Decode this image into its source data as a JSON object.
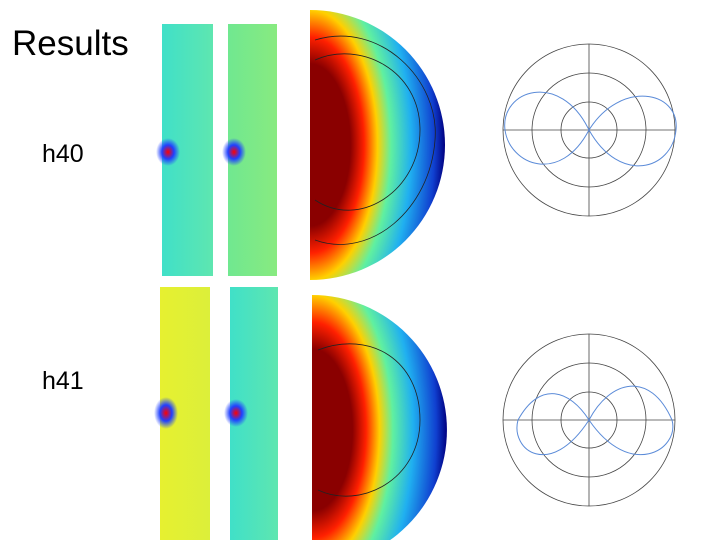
{
  "slide": {
    "title": "Results",
    "labels": [
      "h40",
      "h41"
    ]
  }
}
